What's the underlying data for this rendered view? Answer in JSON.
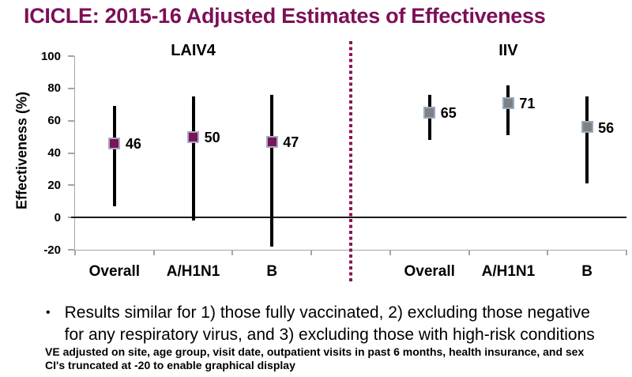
{
  "title": {
    "text": "ICICLE: 2015-16 Adjusted Estimates of Effectiveness",
    "color": "#7d0f57"
  },
  "chart_data": {
    "type": "scatter",
    "subtype": "point-estimates-with-error-bars",
    "ylabel": "Effectiveness (%)",
    "ylim": [
      -20,
      100
    ],
    "yticks": [
      -20,
      0,
      20,
      40,
      60,
      80,
      100
    ],
    "grid": false,
    "error_bar_color": "#000000",
    "axis_color": "#a6a6a6",
    "zero_line_color": "#1a1a1a",
    "separator": {
      "style": "dotted-vertical",
      "color": "#8c164f",
      "slot": 3
    },
    "panels": [
      {
        "label": "LAIV4",
        "marker_color": "#7a1556",
        "marker_border_color": "#a6aacd",
        "points": [
          {
            "category": "Overall",
            "value": 46,
            "ci_low": 7,
            "ci_high": 69
          },
          {
            "category": "A/H1N1",
            "value": 50,
            "ci_low": -2,
            "ci_high": 75
          },
          {
            "category": "B",
            "value": 47,
            "ci_low": -18,
            "ci_high": 76
          }
        ]
      },
      {
        "label": "IIV",
        "marker_color": "#808080",
        "marker_border_color": "#94a9c4",
        "points": [
          {
            "category": "Overall",
            "value": 65,
            "ci_low": 48,
            "ci_high": 76
          },
          {
            "category": "A/H1N1",
            "value": 71,
            "ci_low": 51,
            "ci_high": 82
          },
          {
            "category": "B",
            "value": 56,
            "ci_low": 21,
            "ci_high": 75
          }
        ]
      }
    ]
  },
  "bullet": {
    "glyph": "•",
    "text": "Results similar for 1) those fully vaccinated, 2) excluding those negative for any respiratory virus, and 3) excluding those with high-risk conditions"
  },
  "footnotes": [
    "VE adjusted on site, age group, visit date, outpatient visits in past 6 months, health insurance, and sex",
    "CI's truncated at -20 to enable graphical display"
  ]
}
